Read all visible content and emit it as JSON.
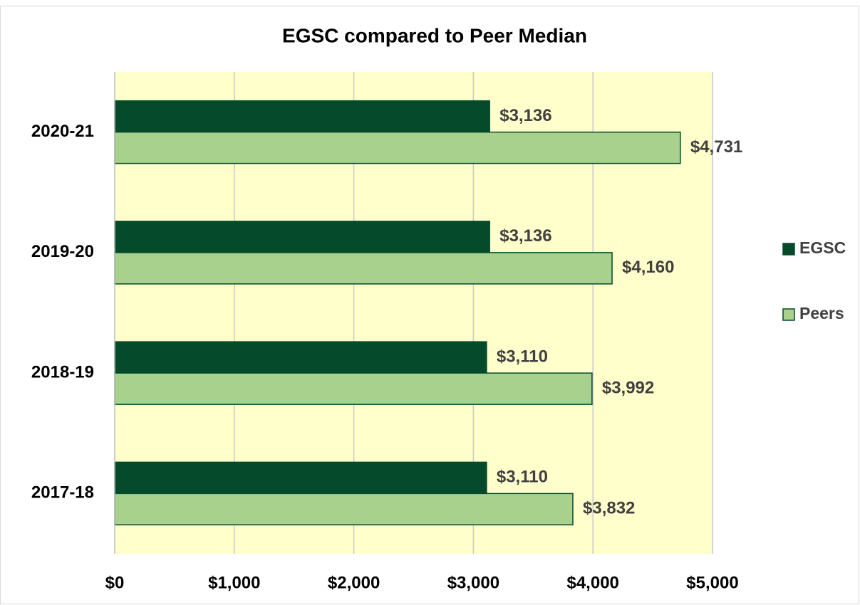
{
  "chart_data": {
    "type": "bar",
    "orientation": "horizontal",
    "title": "EGSC compared to Peer Median",
    "categories": [
      "2020-21",
      "2019-20",
      "2018-19",
      "2017-18"
    ],
    "series": [
      {
        "name": "EGSC",
        "color": "#064a2c",
        "values": [
          3136,
          3136,
          3110,
          3110
        ],
        "value_labels": [
          "$3,136",
          "$3,136",
          "$3,110",
          "$3,110"
        ]
      },
      {
        "name": "Peers",
        "color": "#a9d18e",
        "values": [
          4731,
          4160,
          3992,
          3832
        ],
        "value_labels": [
          "$4,731",
          "$4,160",
          "$3,992",
          "$3,832"
        ]
      }
    ],
    "xlim": [
      0,
      5000
    ],
    "xticks": [
      {
        "value": 0,
        "label": "$0"
      },
      {
        "value": 1000,
        "label": "$1,000"
      },
      {
        "value": 2000,
        "label": "$2,000"
      },
      {
        "value": 3000,
        "label": "$3,000"
      },
      {
        "value": 4000,
        "label": "$4,000"
      },
      {
        "value": 5000,
        "label": "$5,000"
      }
    ],
    "grid": true,
    "legend": "right",
    "plot_background": "#ffffcc"
  }
}
